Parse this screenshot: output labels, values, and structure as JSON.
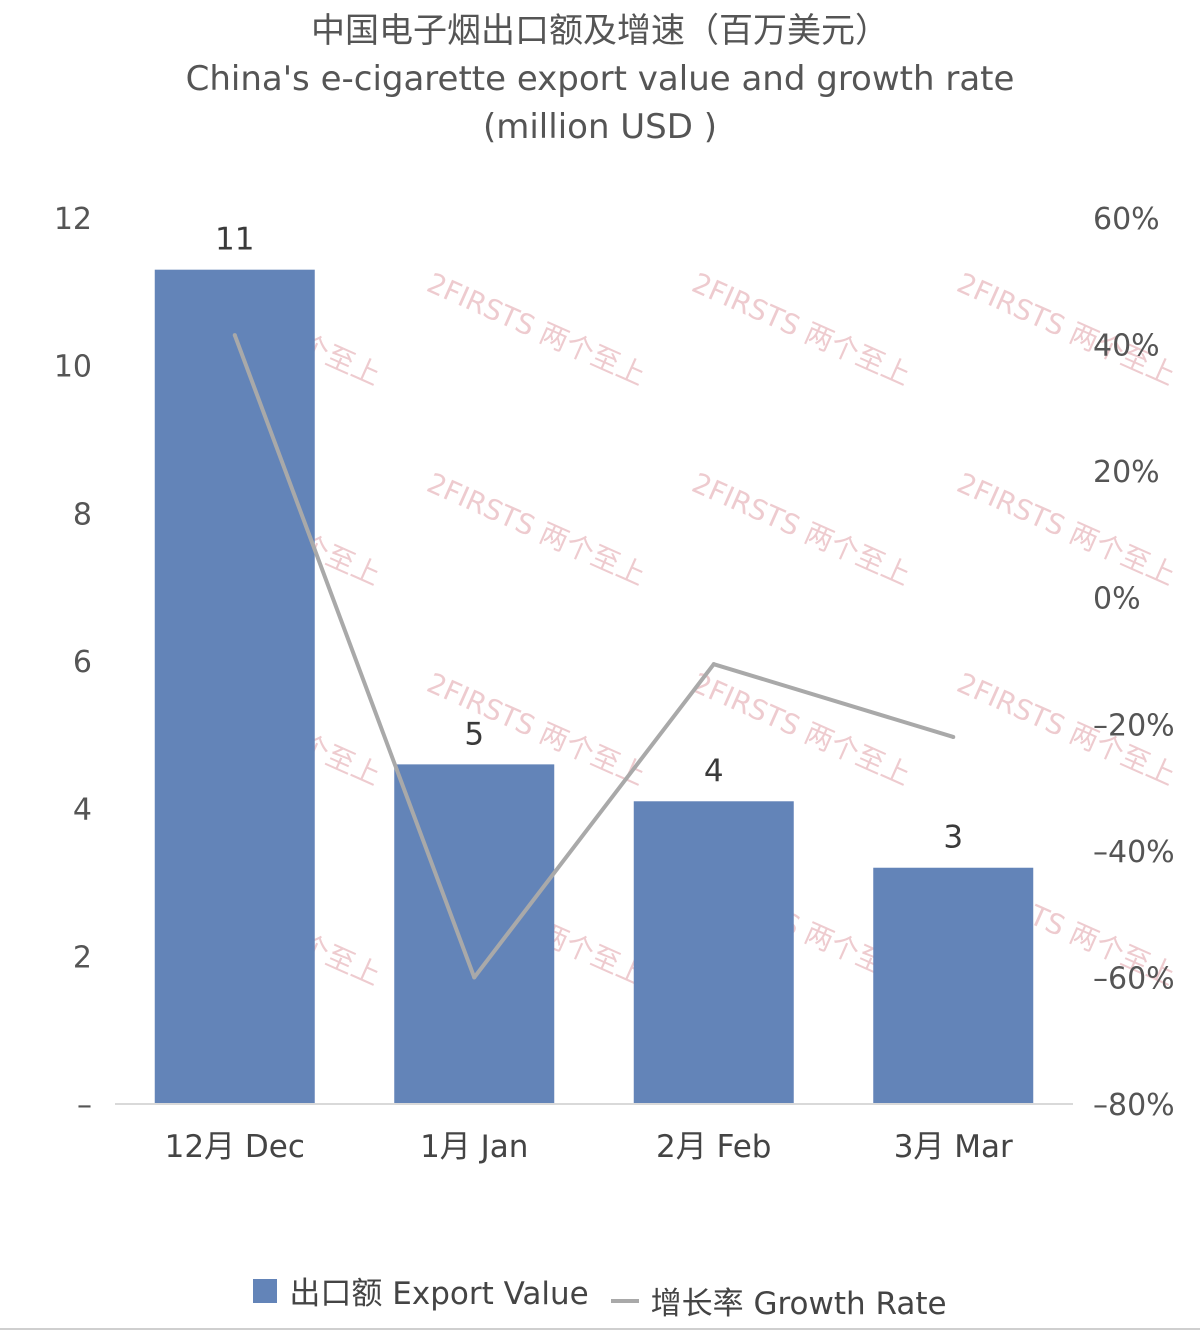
{
  "chart_data": {
    "type": "bar+line",
    "title_cn": "中国电子烟出口额及增速（百万美元）",
    "title_en": "China's e-cigarette export value and growth rate",
    "title_unit": "(million USD )",
    "categories": [
      "12月 Dec",
      "1月 Jan",
      "2月 Feb",
      "3月 Mar"
    ],
    "series": [
      {
        "name": "出口额 Export Value",
        "type": "bar",
        "axis": "left",
        "values": [
          11.3,
          4.6,
          4.1,
          3.2
        ],
        "labels": [
          "11",
          "5",
          "4",
          "3"
        ],
        "color": "#6384b8"
      },
      {
        "name": "增长率 Growth Rate",
        "type": "line",
        "axis": "right",
        "values": [
          41.5,
          -60,
          -10.5,
          -22
        ],
        "color": "#a9a9a9"
      }
    ],
    "y_left": {
      "ylim": [
        0,
        12
      ],
      "ticks": [
        0,
        2,
        4,
        6,
        8,
        10,
        12
      ],
      "tick_labels": [
        "–",
        "2",
        "4",
        "6",
        "8",
        "10",
        "12"
      ]
    },
    "y_right": {
      "ylim": [
        -80,
        60
      ],
      "ticks": [
        -80,
        -60,
        -40,
        -20,
        0,
        20,
        40,
        60
      ],
      "tick_labels": [
        "–80%",
        "–60%",
        "–40%",
        "–20%",
        "0%",
        "20%",
        "40%",
        "60%"
      ]
    },
    "grid": false,
    "legend_position": "bottom"
  },
  "watermark": "2FIRSTS 两个至上",
  "colors": {
    "bar": "#6384b8",
    "line": "#a9a9a9",
    "axis": "#d9d9d9",
    "watermark": "#e8b9bf"
  }
}
